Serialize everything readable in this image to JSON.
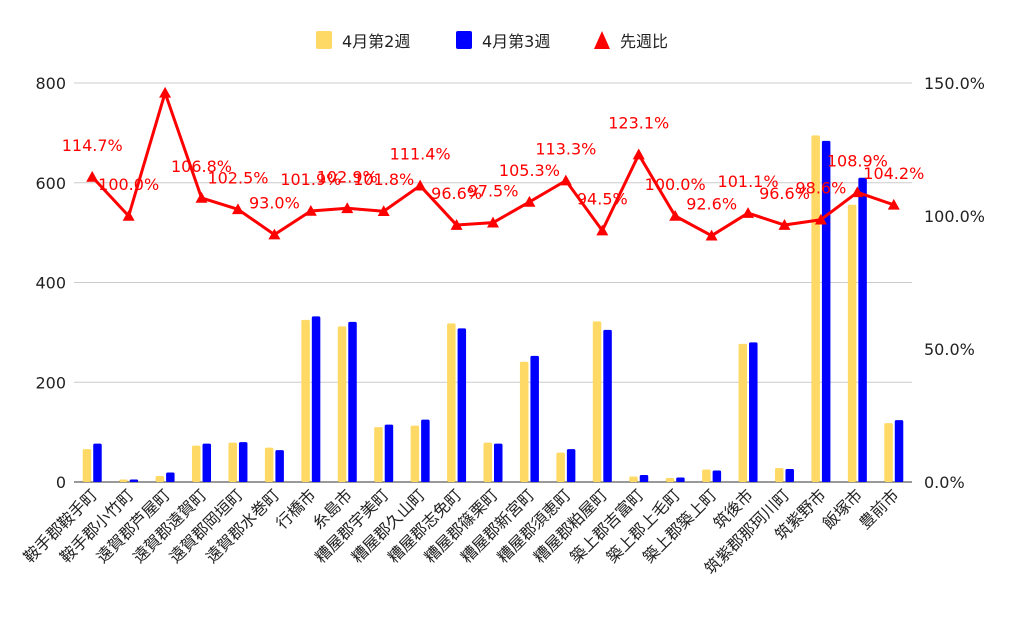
{
  "chart_data": {
    "type": "bar",
    "categories": [
      "鞍手郡鞍手町",
      "鞍手郡小竹町",
      "遠賀郡芦屋町",
      "遠賀郡遠賀町",
      "遠賀郡岡垣町",
      "遠賀郡水巻町",
      "行橋市",
      "糸島市",
      "糟屋郡宇美町",
      "糟屋郡久山町",
      "糟屋郡志免町",
      "糟屋郡篠栗町",
      "糟屋郡新宮町",
      "糟屋郡須恵町",
      "糟屋郡粕屋町",
      "築上郡吉富町",
      "築上郡上毛町",
      "築上郡築上町",
      "筑後市",
      "筑紫郡那珂川町",
      "筑紫野市",
      "飯塚市",
      "豊前市"
    ],
    "series": [
      {
        "name": "4月第2週",
        "type": "bar",
        "axis": "left",
        "color": "#FFD966",
        "values": [
          66,
          5,
          12,
          73,
          79,
          69,
          325,
          312,
          110,
          113,
          318,
          79,
          241,
          59,
          322,
          11,
          8,
          25,
          277,
          28,
          695,
          556,
          118
        ]
      },
      {
        "name": "4月第3週",
        "type": "bar",
        "axis": "left",
        "color": "#0000FF",
        "values": [
          77,
          5,
          19,
          77,
          80,
          64,
          332,
          321,
          115,
          125,
          308,
          77,
          253,
          66,
          305,
          14,
          9,
          23,
          280,
          26,
          684,
          610,
          124
        ]
      },
      {
        "name": "先週比",
        "type": "line",
        "axis": "right",
        "color": "#FF0000",
        "values": [
          114.7,
          100.0,
          146.3,
          106.8,
          102.5,
          93.0,
          101.9,
          102.9,
          101.8,
          111.4,
          96.6,
          97.5,
          105.3,
          113.3,
          94.5,
          123.1,
          100.0,
          92.6,
          101.1,
          96.6,
          98.6,
          108.9,
          104.2
        ],
        "labels": [
          "114.7%",
          "100.0%",
          "",
          "106.8%",
          "102.5%",
          "93.0%",
          "101.9%",
          "102.9%",
          "101.8%",
          "111.4%",
          "96.6%",
          "97.5%",
          "105.3%",
          "113.3%",
          "94.5%",
          "123.1%",
          "100.0%",
          "92.6%",
          "101.1%",
          "96.6%",
          "98.6%",
          "108.9%",
          "104.2%"
        ]
      }
    ],
    "y_left": {
      "min": 0,
      "max": 800,
      "ticks": [
        "0",
        "200",
        "400",
        "600",
        "800"
      ]
    },
    "y_right": {
      "min": 0,
      "max": 150,
      "ticks": [
        "0.0%",
        "50.0%",
        "100.0%",
        "150.0%"
      ]
    },
    "grid": true,
    "legend_position": "top"
  }
}
